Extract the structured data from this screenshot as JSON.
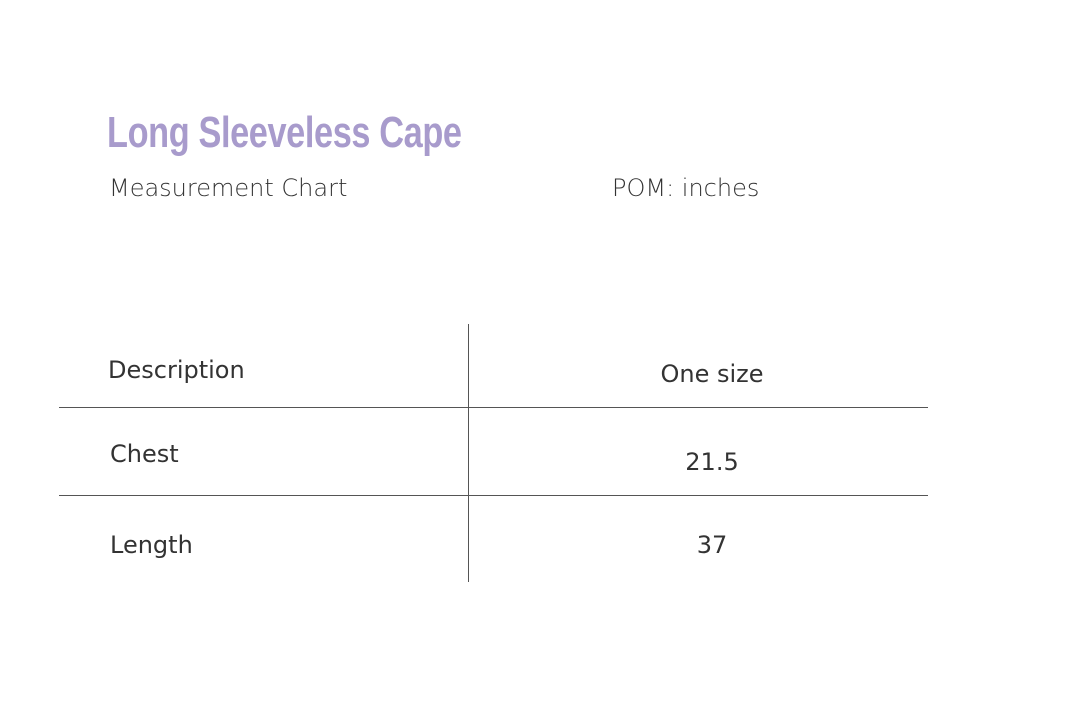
{
  "header": {
    "title": "Long Sleeveless Cape",
    "subtitle": "Measurement Chart",
    "unit_note": "POM: inches"
  },
  "table": {
    "columns": [
      "Description",
      "One size"
    ],
    "rows": [
      [
        "Chest",
        21.5
      ],
      [
        "Length",
        37
      ]
    ]
  }
}
